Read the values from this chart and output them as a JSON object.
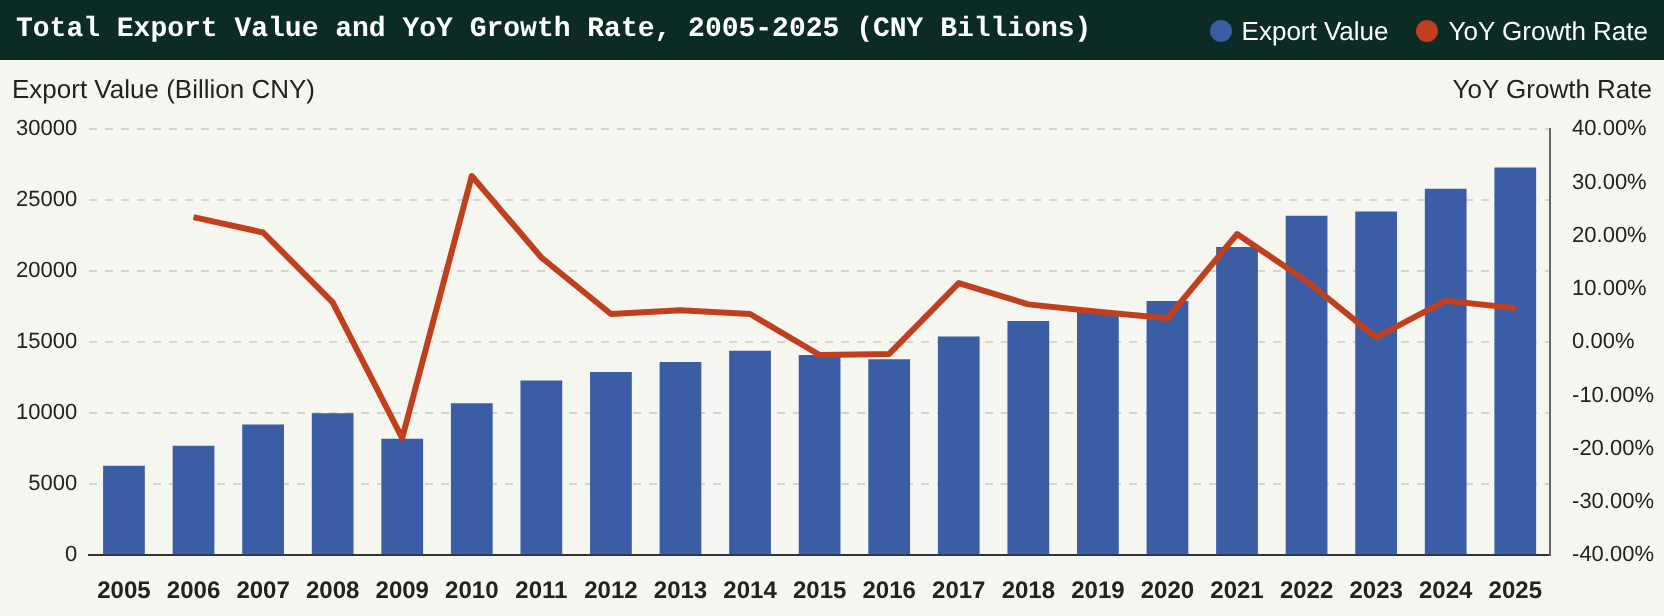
{
  "chart_data": {
    "type": "bar",
    "title": "Total Export Value and YoY Growth Rate, 2005-2025 (CNY Billions)",
    "ylabel": "Export Value (Billion CNY)",
    "y2label": "YoY Growth Rate",
    "categories": [
      "2005",
      "2006",
      "2007",
      "2008",
      "2009",
      "2010",
      "2011",
      "2012",
      "2013",
      "2014",
      "2015",
      "2016",
      "2017",
      "2018",
      "2019",
      "2020",
      "2021",
      "2022",
      "2023",
      "2024",
      "2025"
    ],
    "series": [
      {
        "name": "Export Value",
        "color": "#3a5da5",
        "values": [
          6300,
          7700,
          9200,
          10000,
          8200,
          10700,
          12300,
          12900,
          13600,
          14400,
          14100,
          13800,
          15400,
          16500,
          17200,
          17900,
          21700,
          23900,
          24200,
          25800,
          27300
        ]
      },
      {
        "name": "YoY Growth Rate",
        "type": "line",
        "axis": "y2",
        "color": "#c0401e",
        "values": [
          null,
          23.5,
          20.6,
          7.5,
          -18.0,
          31.2,
          15.9,
          5.3,
          6.0,
          5.3,
          -2.4,
          -2.2,
          11.1,
          7.1,
          5.7,
          4.5,
          20.3,
          11.5,
          0.9,
          7.8,
          6.4
        ]
      }
    ],
    "ylim": [
      0,
      30000
    ],
    "yticks": [
      0,
      5000,
      10000,
      15000,
      20000,
      25000,
      30000
    ],
    "y2lim": [
      -40,
      40
    ],
    "y2ticks": [
      {
        "value": -40,
        "label": "-40.00%"
      },
      {
        "value": -30,
        "label": "-30.00%"
      },
      {
        "value": -20,
        "label": "-20.00%"
      },
      {
        "value": -10,
        "label": "-10.00%"
      },
      {
        "value": 0,
        "label": "0.00%"
      },
      {
        "value": 10,
        "label": "10.00%"
      },
      {
        "value": 20,
        "label": "20.00%"
      },
      {
        "value": 30,
        "label": "30.00%"
      },
      {
        "value": 40,
        "label": "40.00%"
      }
    ],
    "grid": "y",
    "legend": "top right",
    "marker": "none",
    "line_style": "solid"
  }
}
